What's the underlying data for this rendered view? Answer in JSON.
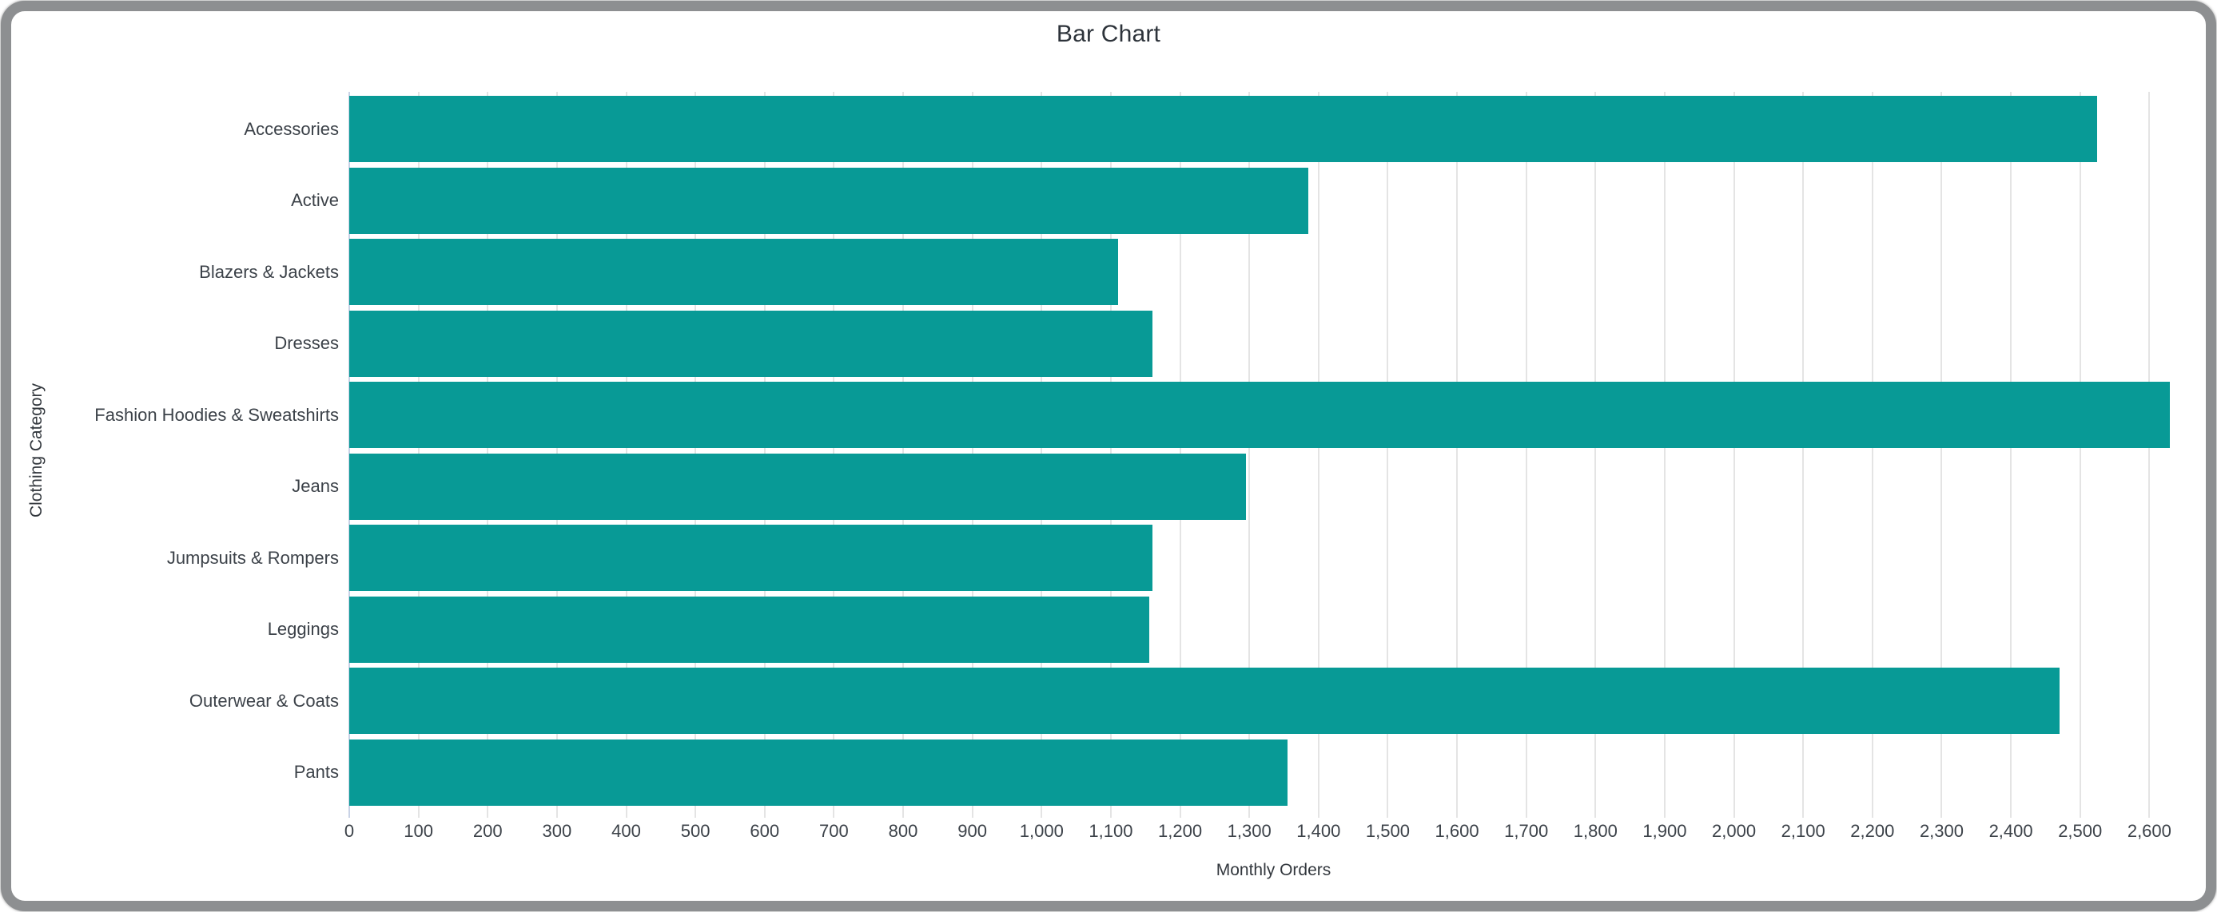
{
  "frame": {
    "border_color": "#8d8f91",
    "background_color": "#ffffff"
  },
  "chart_data": {
    "type": "bar",
    "orientation": "horizontal",
    "title": "Bar Chart",
    "xlabel": "Monthly Orders",
    "ylabel": "Clothing Category",
    "categories": [
      "Accessories",
      "Active",
      "Blazers & Jackets",
      "Dresses",
      "Fashion Hoodies & Sweatshirts",
      "Jeans",
      "Jumpsuits & Rompers",
      "Leggings",
      "Outerwear & Coats",
      "Pants"
    ],
    "values": [
      2525,
      1385,
      1110,
      1160,
      2630,
      1295,
      1160,
      1155,
      2470,
      1355
    ],
    "xlim": [
      0,
      2670
    ],
    "xticks": [
      0,
      100,
      200,
      300,
      400,
      500,
      600,
      700,
      800,
      900,
      1000,
      1100,
      1200,
      1300,
      1400,
      1500,
      1600,
      1700,
      1800,
      1900,
      2000,
      2100,
      2200,
      2300,
      2400,
      2500,
      2600
    ],
    "xtick_format": "thousands-comma",
    "grid": "vertical",
    "legend": "none",
    "bar_color": "#089a96",
    "gridline_color": "#e4e4e4",
    "zero_line_color": "#c9d3e6",
    "text_color": "#3c4249",
    "title_color": "#2d333a"
  }
}
